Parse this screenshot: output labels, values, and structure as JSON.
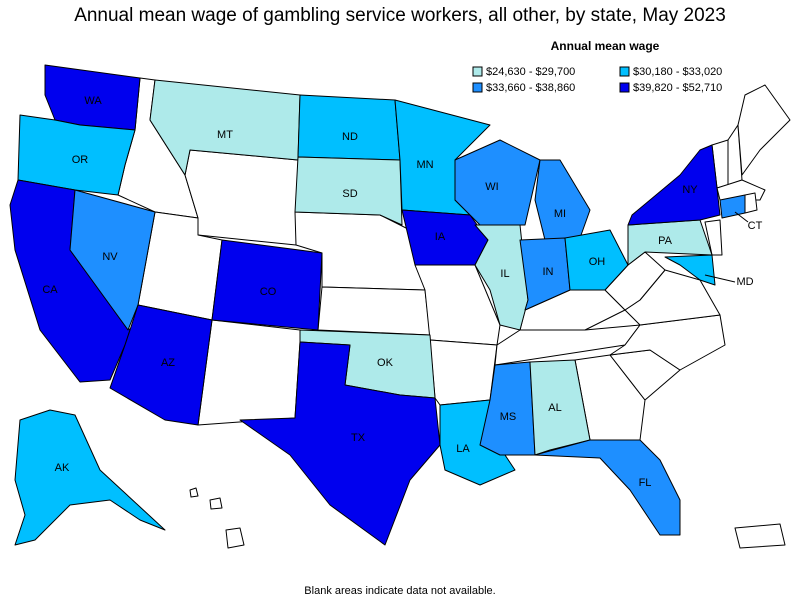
{
  "title": "Annual mean wage of gambling service workers, all other, by state, May 2023",
  "legend": {
    "title": "Annual mean wage",
    "items": [
      {
        "label": "$24,630 - $29,700",
        "color": "#aeeaea",
        "states": [
          "MT",
          "SD",
          "IL",
          "AL",
          "OK",
          "PA"
        ]
      },
      {
        "label": "$30,180 - $33,020",
        "color": "#00bfff",
        "states": [
          "OR",
          "ND",
          "MN",
          "OH",
          "LA",
          "AK",
          "MD"
        ]
      },
      {
        "label": "$33,660 - $38,860",
        "color": "#1e8fff",
        "states": [
          "NV",
          "WI",
          "MI",
          "IN",
          "MS",
          "FL",
          "CT"
        ]
      },
      {
        "label": "$39,820 - $52,710",
        "color": "#0000ee",
        "states": [
          "WA",
          "CA",
          "AZ",
          "CO",
          "TX",
          "IA",
          "NY"
        ]
      }
    ]
  },
  "footnote": "Blank areas indicate data not available."
}
